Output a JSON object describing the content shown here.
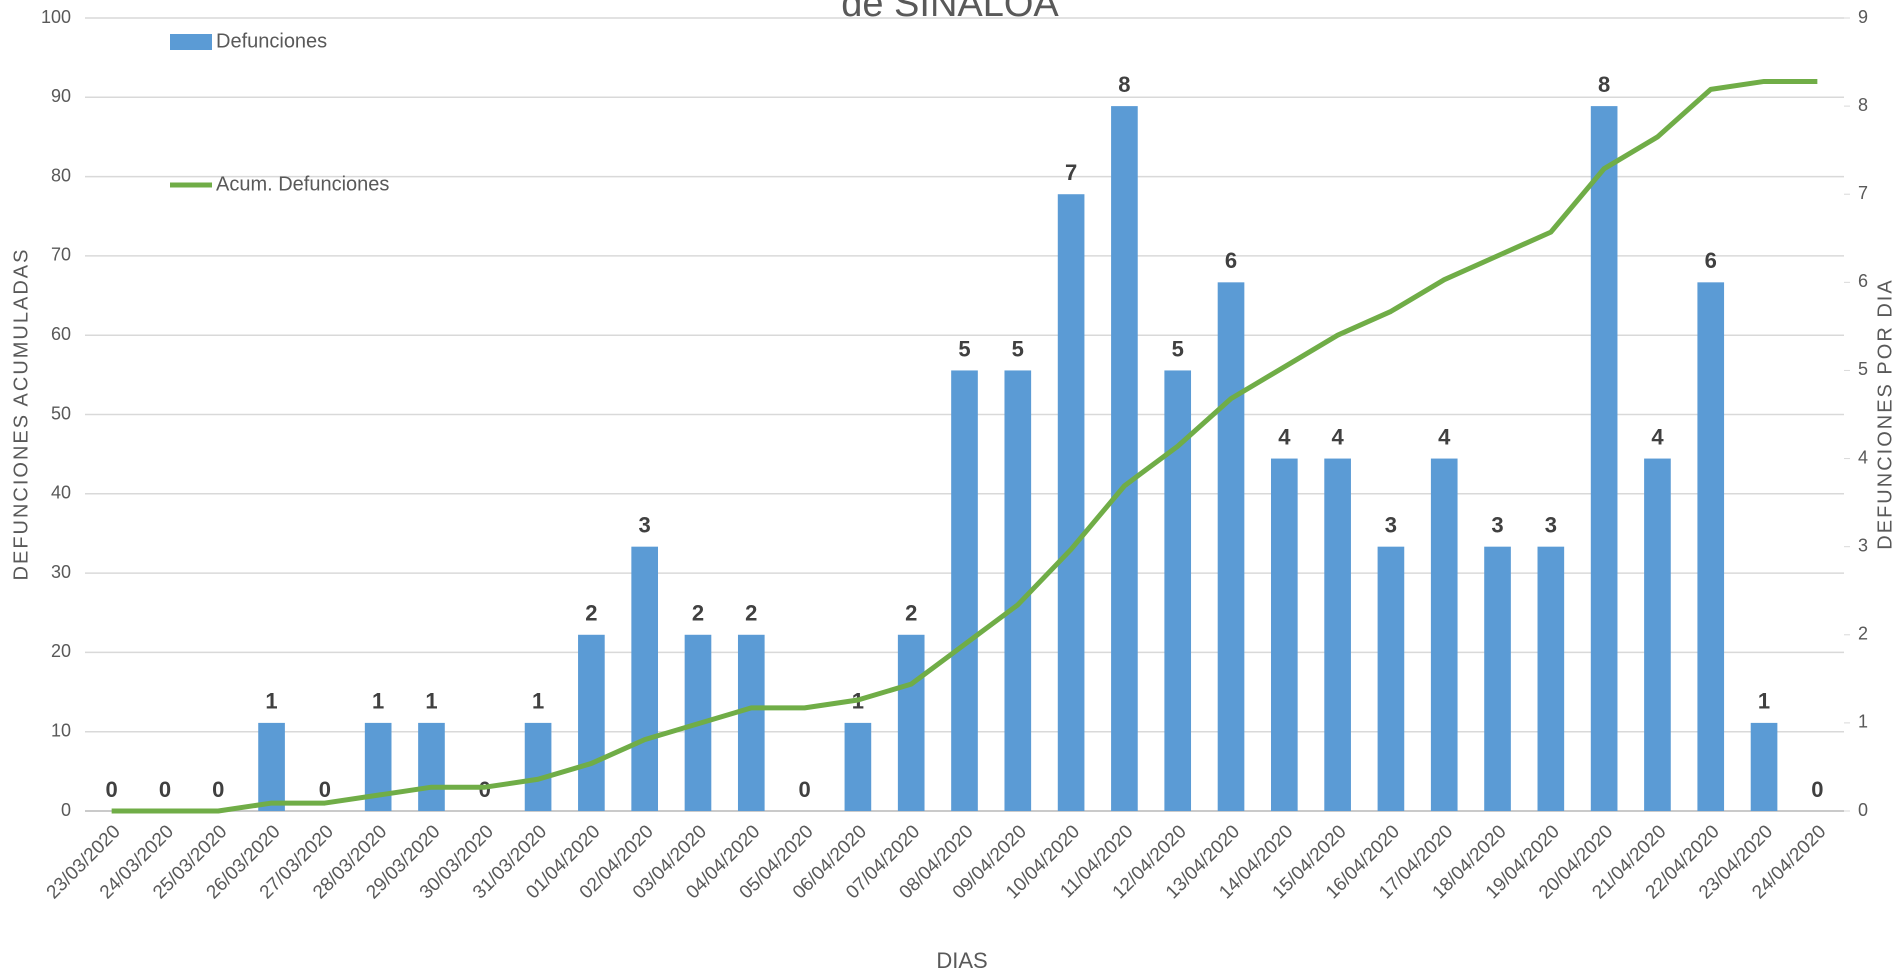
{
  "chart_data": {
    "type": "bar_line",
    "title": "de SINALOA",
    "xlabel": "DIAS",
    "ylabel": "DEFUNCIONES  ACUMULADAS",
    "y2label": "DEFUNCIONES  POR DIA",
    "categories": [
      "23/03/2020",
      "24/03/2020",
      "25/03/2020",
      "26/03/2020",
      "27/03/2020",
      "28/03/2020",
      "29/03/2020",
      "30/03/2020",
      "31/03/2020",
      "01/04/2020",
      "02/04/2020",
      "03/04/2020",
      "04/04/2020",
      "05/04/2020",
      "06/04/2020",
      "07/04/2020",
      "08/04/2020",
      "09/04/2020",
      "10/04/2020",
      "11/04/2020",
      "12/04/2020",
      "13/04/2020",
      "14/04/2020",
      "15/04/2020",
      "16/04/2020",
      "17/04/2020",
      "18/04/2020",
      "19/04/2020",
      "20/04/2020",
      "21/04/2020",
      "22/04/2020",
      "23/04/2020",
      "24/04/2020"
    ],
    "series": [
      {
        "name": "Defunciones",
        "type": "bar",
        "axis": "y2",
        "color": "#5b9bd5",
        "values": [
          0,
          0,
          0,
          1,
          0,
          1,
          1,
          0,
          1,
          2,
          3,
          2,
          2,
          0,
          1,
          2,
          5,
          5,
          7,
          8,
          5,
          6,
          4,
          4,
          3,
          4,
          3,
          3,
          8,
          4,
          6,
          1,
          0
        ]
      },
      {
        "name": "Acum. Defunciones",
        "type": "line",
        "axis": "y",
        "color": "#70ad47",
        "values": [
          0,
          0,
          0,
          1,
          1,
          2,
          3,
          3,
          4,
          6,
          9,
          11,
          13,
          13,
          14,
          16,
          21,
          26,
          33,
          41,
          46,
          52,
          56,
          60,
          63,
          67,
          70,
          73,
          81,
          85,
          91,
          92,
          92
        ]
      }
    ],
    "ylim": [
      0,
      100
    ],
    "yticks": [
      0,
      10,
      20,
      30,
      40,
      50,
      60,
      70,
      80,
      90,
      100
    ],
    "y2lim": [
      0,
      9
    ],
    "y2ticks": [
      0,
      1,
      2,
      3,
      4,
      5,
      6,
      7,
      8,
      9
    ],
    "grid": true
  }
}
